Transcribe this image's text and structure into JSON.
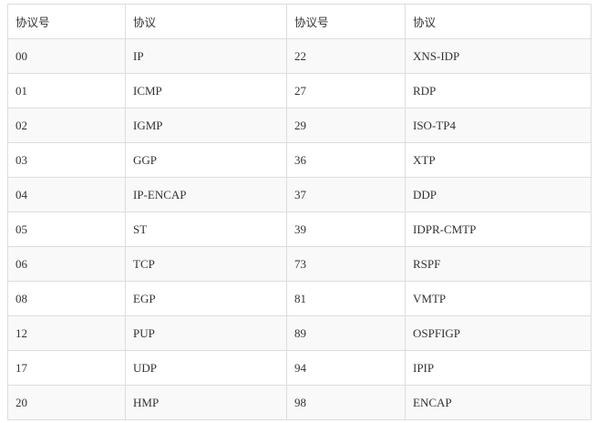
{
  "table": {
    "headers": [
      "协议号",
      "协议",
      "协议号",
      "协议"
    ],
    "rows": [
      [
        "00",
        "IP",
        "22",
        "XNS-IDP"
      ],
      [
        "01",
        "ICMP",
        "27",
        "RDP"
      ],
      [
        "02",
        "IGMP",
        "29",
        "ISO-TP4"
      ],
      [
        "03",
        "GGP",
        "36",
        "XTP"
      ],
      [
        "04",
        "IP-ENCAP",
        "37",
        "DDP"
      ],
      [
        "05",
        "ST",
        "39",
        "IDPR-CMTP"
      ],
      [
        "06",
        "TCP",
        "73",
        "RSPF"
      ],
      [
        "08",
        "EGP",
        "81",
        "VMTP"
      ],
      [
        "12",
        "PUP",
        "89",
        "OSPFIGP"
      ],
      [
        "17",
        "UDP",
        "94",
        "IPIP"
      ],
      [
        "20",
        "HMP",
        "98",
        "ENCAP"
      ]
    ]
  }
}
